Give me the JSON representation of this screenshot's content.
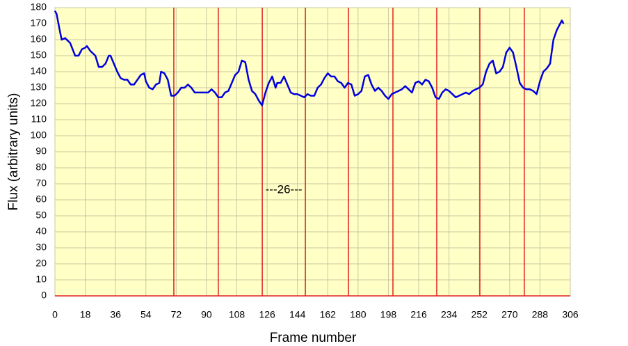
{
  "chart_data": {
    "type": "line",
    "x_label": "Frame number",
    "y_label": "Flux (arbitrary units)",
    "x": [
      0,
      1,
      3,
      4,
      6,
      9,
      12,
      14,
      16,
      18,
      19,
      21,
      24,
      26,
      28,
      30,
      32,
      33,
      35,
      37,
      39,
      41,
      43,
      45,
      47,
      49,
      51,
      53,
      54,
      56,
      58,
      60,
      62,
      63,
      65,
      67,
      68,
      69,
      71,
      73,
      75,
      77,
      79,
      81,
      83,
      86,
      89,
      91,
      93,
      95,
      97,
      99,
      101,
      103,
      105,
      107,
      109,
      111,
      113,
      115,
      117,
      119,
      121,
      123,
      125,
      127,
      129,
      131,
      132,
      134,
      136,
      138,
      140,
      142,
      144,
      146,
      148,
      150,
      152,
      154,
      156,
      158,
      160,
      162,
      164,
      166,
      168,
      170,
      172,
      174,
      176,
      178,
      180,
      182,
      184,
      186,
      188,
      190,
      192,
      194,
      196,
      198,
      200,
      202,
      204,
      206,
      208,
      210,
      212,
      214,
      216,
      218,
      220,
      222,
      224,
      226,
      228,
      230,
      232,
      234,
      236,
      238,
      240,
      242,
      244,
      246,
      248,
      250,
      252,
      254,
      256,
      258,
      260,
      262,
      264,
      266,
      268,
      270,
      272,
      274,
      276,
      278,
      280,
      282,
      284,
      286,
      288,
      290,
      292,
      294,
      296,
      298,
      300,
      301,
      302
    ],
    "series": [
      {
        "color": "#0000dd",
        "values": [
          178,
          176,
          165,
          160,
          161,
          158,
          150,
          150,
          154,
          155,
          156,
          153,
          150,
          143,
          143,
          145,
          150,
          150,
          145,
          140,
          136,
          135,
          135,
          132,
          132,
          135,
          138,
          139,
          134,
          130,
          129,
          132,
          133,
          140,
          139,
          135,
          130,
          125,
          125,
          127,
          130,
          130,
          132,
          130,
          127,
          127,
          127,
          127,
          129,
          127,
          124,
          124,
          127,
          128,
          133,
          138,
          140,
          147,
          146,
          135,
          128,
          126,
          122,
          119,
          127,
          133,
          137,
          130,
          133,
          133,
          137,
          132,
          127,
          126,
          126,
          125,
          124,
          126,
          125,
          125,
          130,
          132,
          136,
          139,
          137,
          137,
          134,
          133,
          130,
          133,
          132,
          125,
          126,
          128,
          137,
          138,
          132,
          128,
          130,
          128,
          125,
          123,
          126,
          127,
          128,
          129,
          131,
          129,
          127,
          133,
          134,
          132,
          135,
          134,
          130,
          124,
          123,
          127,
          129,
          128,
          126,
          124,
          125,
          126,
          127,
          126,
          128,
          129,
          130,
          132,
          140,
          145,
          147,
          139,
          140,
          143,
          152,
          155,
          152,
          143,
          133,
          130,
          129,
          129,
          128,
          126,
          134,
          140,
          142,
          145,
          160,
          166,
          170,
          172,
          170
        ]
      }
    ],
    "vertical_lines": [
      70.6,
      97.0,
      123.1,
      148.7,
      174.3,
      200.7,
      226.7,
      252.3,
      278.7
    ],
    "annotation": "---26---",
    "xlim": [
      0,
      306
    ],
    "xticks": [
      0,
      18,
      36,
      54,
      72,
      90,
      108,
      126,
      144,
      162,
      180,
      198,
      216,
      234,
      252,
      270,
      288,
      306
    ],
    "ylim": [
      0,
      180
    ],
    "yticks": [
      0,
      10,
      20,
      30,
      40,
      50,
      60,
      70,
      80,
      90,
      100,
      110,
      120,
      130,
      140,
      150,
      160,
      170,
      180
    ],
    "grid": true
  }
}
